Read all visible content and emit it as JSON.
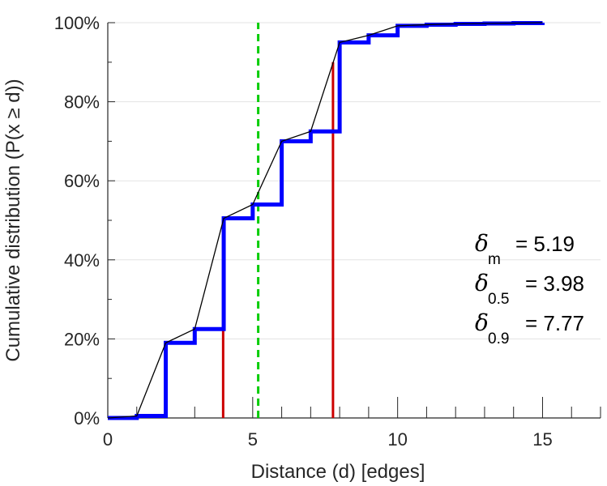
{
  "chart_data": {
    "type": "line",
    "xlabel": "Distance (d) [edges]",
    "ylabel": "Cumulative distribution (P(x ≥ d))",
    "xlim": [
      0,
      17
    ],
    "ylim": [
      0,
      100
    ],
    "x_ticks": [
      "0",
      "5",
      "10",
      "15"
    ],
    "x_tick_values": [
      0,
      5,
      10,
      15
    ],
    "y_ticks": [
      "0%",
      "20%",
      "40%",
      "60%",
      "80%",
      "100%"
    ],
    "y_tick_values": [
      0,
      20,
      40,
      60,
      80,
      100
    ],
    "grid": "horizontal",
    "series": [
      {
        "style": "step",
        "color": "#0000ff",
        "x": [
          0,
          1,
          2,
          3,
          4,
          5,
          6,
          7,
          8,
          9,
          10,
          11,
          12,
          13,
          14,
          15
        ],
        "y": [
          0,
          0.5,
          19,
          22.5,
          50.5,
          54,
          70,
          72.5,
          95,
          96.8,
          99.2,
          99.5,
          99.7,
          99.8,
          99.9,
          100
        ]
      },
      {
        "style": "line",
        "color": "#000000",
        "x": [
          0,
          1,
          2,
          3,
          4,
          5,
          6,
          7,
          8,
          9,
          10,
          11,
          12,
          13,
          14,
          15
        ],
        "y": [
          0,
          0.5,
          19,
          22.5,
          50.5,
          54,
          70,
          72.5,
          95,
          96.8,
          99.2,
          99.5,
          99.7,
          99.8,
          99.9,
          100
        ]
      }
    ],
    "reference_lines": [
      {
        "x": 3.98,
        "y": 50,
        "color": "#cc0000",
        "style": "solid"
      },
      {
        "x": 7.77,
        "y": 90,
        "color": "#cc0000",
        "style": "solid"
      },
      {
        "x": 5.19,
        "y": 100,
        "color": "#00cc00",
        "style": "dashed"
      }
    ],
    "annotations": [
      {
        "symbol": "δ",
        "sub": "m",
        "text": "= 5.19"
      },
      {
        "symbol": "δ",
        "sub": "0.5",
        "text": "= 3.98"
      },
      {
        "symbol": "δ",
        "sub": "0.9",
        "text": "= 7.77"
      }
    ]
  }
}
